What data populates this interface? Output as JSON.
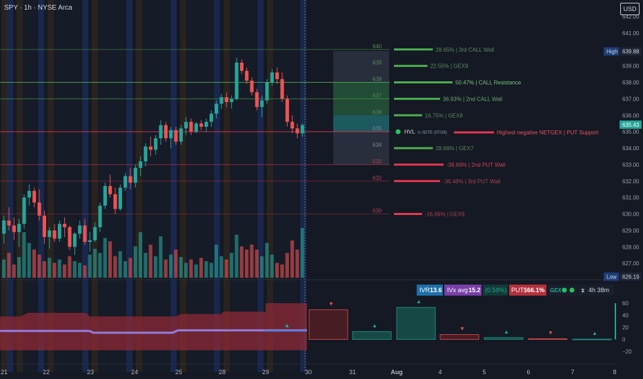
{
  "header": {
    "title": "SPY · 1h · NYSE Arca",
    "currency": "USD"
  },
  "chart_data": {
    "type": "candlestick",
    "price_ylim": [
      626,
      642
    ],
    "price_ticks": [
      "642.00",
      "641.00",
      "640.00",
      "639.00",
      "638.00",
      "637.00",
      "636.00",
      "635.00",
      "634.00",
      "633.00",
      "632.00",
      "631.00",
      "630.00",
      "629.00",
      "628.00",
      "627.00"
    ],
    "high": {
      "label": "High",
      "value": "639.88",
      "price": 639.88
    },
    "low": {
      "label": "Low",
      "value": "626.19",
      "price": 626.19
    },
    "last": {
      "value": "635.43",
      "price": 635.43
    },
    "x_labels": [
      "21",
      "22",
      "23",
      "24",
      "25",
      "28",
      "29",
      "30",
      "31",
      "Aug",
      "4",
      "5",
      "6",
      "7",
      "8"
    ],
    "candles": [
      [
        628.8,
        629.9,
        628.2,
        629.6
      ],
      [
        629.6,
        630.4,
        629.0,
        629.3
      ],
      [
        629.3,
        629.8,
        628.4,
        628.9
      ],
      [
        628.9,
        629.7,
        628.0,
        629.4
      ],
      [
        629.4,
        631.2,
        629.1,
        631.0
      ],
      [
        631.0,
        631.8,
        630.5,
        631.4
      ],
      [
        631.4,
        631.6,
        630.4,
        630.7
      ],
      [
        630.7,
        631.5,
        629.6,
        629.9
      ],
      [
        629.9,
        630.2,
        628.2,
        628.6
      ],
      [
        628.6,
        629.2,
        627.9,
        629.0
      ],
      [
        629.0,
        629.4,
        628.3,
        628.5
      ],
      [
        628.5,
        629.6,
        628.3,
        629.4
      ],
      [
        629.4,
        629.8,
        628.6,
        629.2
      ],
      [
        629.2,
        629.3,
        627.8,
        628.0
      ],
      [
        628.0,
        628.9,
        627.5,
        628.8
      ],
      [
        628.8,
        629.6,
        628.5,
        629.3
      ],
      [
        629.3,
        629.7,
        628.1,
        628.3
      ],
      [
        628.3,
        628.9,
        627.7,
        628.4
      ],
      [
        628.4,
        629.5,
        628.3,
        629.2
      ],
      [
        629.2,
        630.7,
        628.9,
        630.5
      ],
      [
        630.5,
        631.9,
        630.3,
        631.7
      ],
      [
        631.7,
        632.4,
        631.0,
        631.2
      ],
      [
        631.2,
        631.6,
        630.0,
        630.3
      ],
      [
        630.3,
        631.8,
        630.2,
        631.6
      ],
      [
        631.6,
        632.5,
        631.4,
        632.3
      ],
      [
        632.3,
        632.8,
        631.5,
        631.9
      ],
      [
        631.9,
        633.0,
        631.6,
        632.8
      ],
      [
        632.8,
        633.5,
        632.3,
        633.2
      ],
      [
        633.2,
        634.3,
        632.9,
        634.1
      ],
      [
        634.1,
        634.7,
        633.5,
        633.9
      ],
      [
        633.9,
        634.8,
        633.6,
        634.6
      ],
      [
        634.6,
        635.7,
        634.2,
        635.4
      ],
      [
        635.4,
        635.6,
        634.4,
        634.6
      ],
      [
        634.6,
        635.3,
        634.0,
        635.1
      ],
      [
        635.1,
        635.3,
        634.2,
        634.4
      ],
      [
        634.4,
        635.4,
        634.2,
        635.2
      ],
      [
        635.2,
        635.9,
        634.8,
        635.6
      ],
      [
        635.6,
        635.8,
        634.8,
        635.0
      ],
      [
        635.0,
        635.6,
        634.9,
        635.5
      ],
      [
        635.5,
        635.7,
        635.1,
        635.3
      ],
      [
        635.3,
        635.8,
        635.0,
        635.6
      ],
      [
        635.6,
        636.3,
        635.3,
        636.1
      ],
      [
        636.1,
        636.9,
        635.8,
        636.7
      ],
      [
        636.7,
        637.3,
        636.4,
        637.1
      ],
      [
        637.1,
        637.4,
        636.5,
        636.8
      ],
      [
        636.8,
        637.2,
        636.4,
        637.0
      ],
      [
        637.0,
        639.5,
        636.9,
        639.2
      ],
      [
        639.2,
        639.4,
        638.5,
        638.7
      ],
      [
        638.7,
        638.9,
        637.9,
        638.1
      ],
      [
        638.1,
        638.3,
        637.2,
        637.4
      ],
      [
        637.4,
        637.6,
        636.3,
        636.5
      ],
      [
        636.5,
        637.2,
        635.9,
        636.9
      ],
      [
        636.9,
        638.2,
        636.7,
        638.0
      ],
      [
        638.0,
        638.8,
        637.8,
        638.6
      ],
      [
        638.6,
        638.9,
        637.9,
        638.2
      ],
      [
        638.2,
        638.6,
        636.8,
        637.0
      ],
      [
        637.0,
        637.2,
        635.3,
        635.6
      ],
      [
        635.6,
        636.0,
        634.9,
        635.2
      ],
      [
        635.2,
        635.5,
        634.6,
        634.9
      ],
      [
        634.9,
        635.5,
        634.7,
        635.4
      ]
    ],
    "volume": [
      22,
      30,
      16,
      25,
      55,
      42,
      34,
      28,
      20,
      24,
      18,
      22,
      16,
      26,
      20,
      18,
      15,
      28,
      35,
      30,
      48,
      44,
      26,
      32,
      20,
      24,
      38,
      55,
      30,
      40,
      26,
      50,
      22,
      28,
      34,
      25,
      18,
      22,
      16,
      24,
      20,
      18,
      40,
      26,
      22,
      30,
      52,
      38,
      34,
      40,
      34,
      26,
      42,
      28,
      18,
      16,
      30,
      45,
      34,
      60
    ],
    "oscillator": {
      "ylim": [
        -20,
        60
      ],
      "ticks": [
        "60",
        "40",
        "20",
        "0",
        "−20"
      ]
    },
    "future_bars": [
      {
        "value": 49,
        "direction": "down"
      },
      {
        "value": 13,
        "direction": "up"
      },
      {
        "value": 53,
        "direction": "up"
      },
      {
        "value": 8,
        "direction": "down"
      },
      {
        "value": 3,
        "direction": "up"
      },
      {
        "value": 1,
        "direction": "down"
      },
      {
        "value": 0.5,
        "direction": "up"
      }
    ],
    "levels": [
      {
        "price": 640,
        "label": "28.65% | 3rd CALL Wall",
        "strength": 0.28,
        "color": "#4caf50",
        "label_color": "#5a8a5c"
      },
      {
        "price": 639,
        "label": "22.55% | GEX9",
        "strength": 0.22,
        "color": "#4caf50",
        "label_color": "#5a8a5c"
      },
      {
        "price": 638,
        "label": "50.47% | CALL Resistance",
        "strength": 0.5,
        "color": "#4caf50",
        "label_color": "#7cc47f"
      },
      {
        "price": 637,
        "label": "36.93% | 2nd CALL Wall",
        "strength": 0.36,
        "color": "#4caf50",
        "label_color": "#6aaa6d"
      },
      {
        "price": 636,
        "label": "16.75% | GEX8",
        "strength": 0.16,
        "color": "#4caf50",
        "label_color": "#5a8a5c"
      },
      {
        "price": 635,
        "label": "Highest negative NETGEX | PUT Support",
        "strength": 0.6,
        "color": "#e53950",
        "label_color": "#e5535f"
      },
      {
        "price": 634,
        "label": "28.66% | GEX7",
        "strength": 0.28,
        "color": "#4caf50",
        "label_color": "#5a8a5c"
      },
      {
        "price": 633,
        "label": "-39.89% | 2nd PUT Wall",
        "strength": 0.4,
        "color": "#e53950",
        "label_color": "#c74753"
      },
      {
        "price": 632,
        "label": "-36.48% | 3rd PUT Wall",
        "strength": 0.36,
        "color": "#e53950",
        "label_color": "#a8434d"
      },
      {
        "price": 630,
        "label": "-16.66% | GEX6",
        "strength": 0.16,
        "color": "#e53950",
        "label_color": "#a8434d"
      }
    ],
    "level_axis_labels": [
      "640",
      "639",
      "638",
      "637",
      "636",
      "635",
      "634",
      "633",
      "632",
      "630"
    ],
    "hvl": {
      "label": "HVL",
      "sub": "0DTE (07/29)"
    },
    "stats": {
      "ivr_label": "IVR",
      "ivr_value": "13.6",
      "ivx_label": "IVx avg",
      "ivx_value": "15.2",
      "change": "(0.59%)",
      "puts_label": "PUT$",
      "puts_value": "66.1%",
      "gex_label": "GEX",
      "timer": "4h 38m"
    }
  },
  "colors": {
    "bg": "#151924",
    "up": "#26a69a",
    "down": "#ef5350",
    "blue_band": "#1a2a54",
    "orange_band": "#3a2c1c",
    "call": "#4caf50",
    "put": "#e53950"
  }
}
